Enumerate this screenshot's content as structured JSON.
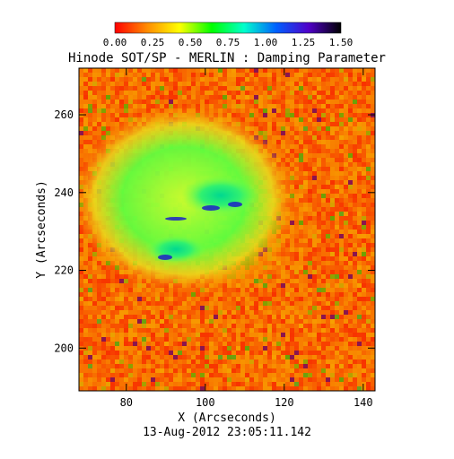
{
  "chart_data": {
    "type": "heatmap",
    "title": "Hinode SOT/SP - MERLIN : Damping Parameter",
    "xlabel": "X (Arcseconds)",
    "ylabel": "Y (Arcseconds)",
    "timestamp": "13-Aug-2012 23:05:11.142",
    "xlim": [
      68,
      143
    ],
    "ylim": [
      189,
      272
    ],
    "x_ticks": [
      80,
      100,
      120,
      140
    ],
    "y_ticks": [
      200,
      220,
      240,
      260
    ],
    "colorbar": {
      "range": [
        0.0,
        1.5
      ],
      "ticks": [
        "0.00",
        "0.25",
        "0.50",
        "0.75",
        "1.00",
        "1.25",
        "1.50"
      ],
      "colormap": [
        "#ff0000",
        "#ff8c00",
        "#ffff00",
        "#00ff00",
        "#00ffcc",
        "#0060ff",
        "#5000c8",
        "#000000"
      ]
    },
    "features": [
      {
        "name": "umbra-upper",
        "center": [
          102,
          237
        ],
        "radius": [
          8,
          4
        ],
        "value": 0.85
      },
      {
        "name": "umbra-lower",
        "center": [
          91,
          225
        ],
        "radius": [
          6,
          3
        ],
        "value": 1.0
      },
      {
        "name": "penumbra",
        "center": [
          103,
          233
        ],
        "radius": [
          22,
          20
        ],
        "value": 0.55
      },
      {
        "name": "quiet-sun",
        "value": 0.1
      }
    ]
  }
}
